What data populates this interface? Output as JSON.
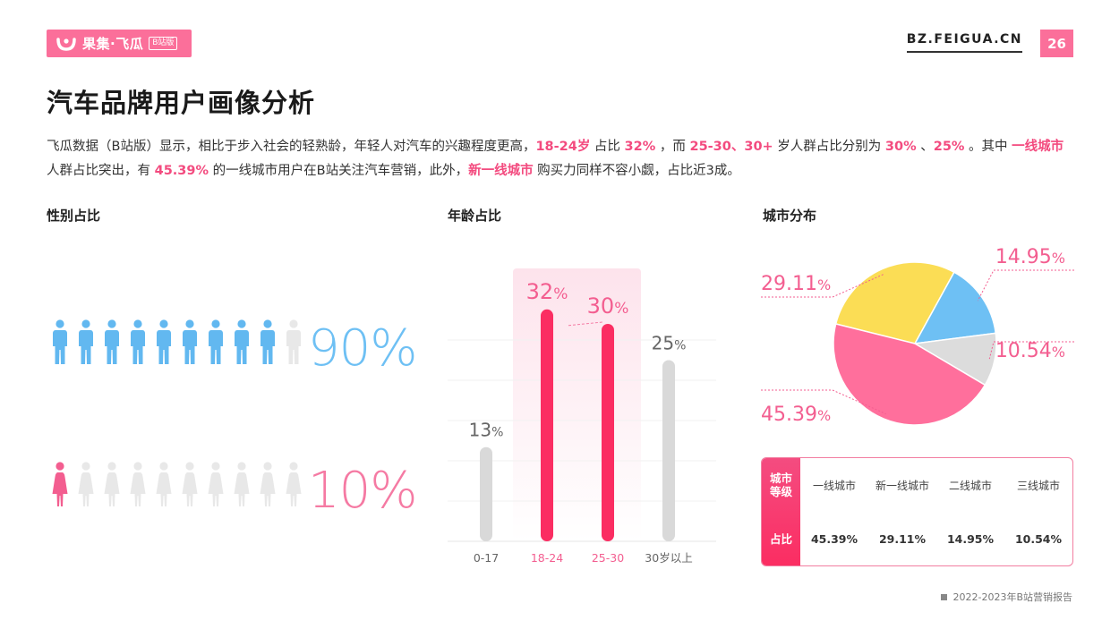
{
  "brand": {
    "name": "果集·飞瓜",
    "tag": "B站版",
    "color": "#fb6f9a"
  },
  "header": {
    "site": "BZ.FEIGUA.CN",
    "page_number": "26"
  },
  "title": "汽车品牌用户画像分析",
  "description": [
    {
      "t": "飞瓜数据（B站版）显示，相比于步入社会的轻熟龄，年轻人对汽车的兴趣程度更高，",
      "hl": false
    },
    {
      "t": "18-24岁",
      "hl": true
    },
    {
      "t": " 占比 ",
      "hl": false
    },
    {
      "t": "32%",
      "hl": true
    },
    {
      "t": " ，而 ",
      "hl": false
    },
    {
      "t": "25-30、30+",
      "hl": true
    },
    {
      "t": " 岁人群占比分别为 ",
      "hl": false
    },
    {
      "t": "30%",
      "hl": true
    },
    {
      "t": " 、",
      "hl": false
    },
    {
      "t": "25%",
      "hl": true
    },
    {
      "t": " 。其中 ",
      "hl": false
    },
    {
      "t": "一线城市",
      "hl": true
    },
    {
      "t": " 人群占比突出，有 ",
      "hl": false
    },
    {
      "t": "45.39%",
      "hl": true
    },
    {
      "t": " 的一线城市用户在B站关注汽车营销，此外，",
      "hl": false
    },
    {
      "t": "新一线城市",
      "hl": true
    },
    {
      "t": " 购买力同样不容小觑，占比近3成。",
      "hl": false
    }
  ],
  "sections": {
    "gender": "性别占比",
    "age": "年龄占比",
    "city": "城市分布"
  },
  "gender": {
    "male_pct": "90%",
    "female_pct": "10%",
    "male_filled": 9,
    "female_filled": 1,
    "total_icons": 10,
    "colors": {
      "male": "#62b8f0",
      "female": "#f35e90",
      "empty": "#e8e8e8"
    }
  },
  "chart_data": [
    {
      "type": "bar",
      "categories": [
        "0-17",
        "18-24",
        "25-30",
        "30岁以上"
      ],
      "values": [
        13,
        32,
        30,
        25
      ],
      "value_labels": [
        "13%",
        "32%",
        "30%",
        "25%"
      ],
      "highlighted": [
        "18-24",
        "25-30"
      ],
      "colors": {
        "highlight": "#fb2d62",
        "normal": "#d9d9d9",
        "highlight_label": "#f35e90",
        "normal_label": "#666666"
      }
    },
    {
      "type": "pie",
      "labels": [
        "一线城市",
        "新一线城市",
        "二线城市",
        "三线城市"
      ],
      "values": [
        45.39,
        29.11,
        14.95,
        10.54
      ],
      "value_labels": [
        "45.39%",
        "29.11%",
        "14.95%",
        "10.54%"
      ],
      "colors": [
        "#ff6f9c",
        "#fbdd55",
        "#6ec0f4",
        "#dcdcdc"
      ]
    }
  ],
  "city_table": {
    "header_row": "城市等级",
    "value_row": "占比",
    "columns": [
      "一线城市",
      "新一线城市",
      "二线城市",
      "三线城市"
    ],
    "values": [
      "45.39%",
      "29.11%",
      "14.95%",
      "10.54%"
    ]
  },
  "footer": "2022-2023年B站营销报告"
}
